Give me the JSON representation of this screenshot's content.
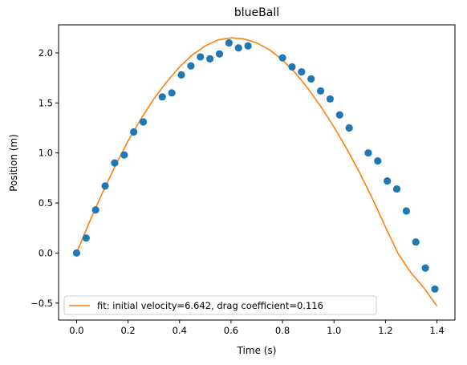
{
  "chart_data": {
    "type": "scatter",
    "title": "blueBall",
    "xlabel": "Time (s)",
    "ylabel": "Position (m)",
    "xlim": [
      -0.07,
      1.47
    ],
    "ylim": [
      -0.67,
      2.28
    ],
    "xticks": [
      0.0,
      0.2,
      0.4,
      0.6,
      0.8,
      1.0,
      1.2,
      1.4
    ],
    "xtick_labels": [
      "0.0",
      "0.2",
      "0.4",
      "0.6",
      "0.8",
      "1.0",
      "1.2",
      "1.4"
    ],
    "yticks": [
      -0.5,
      0.0,
      0.5,
      1.0,
      1.5,
      2.0
    ],
    "ytick_labels": [
      "−0.5",
      "0.0",
      "0.5",
      "1.0",
      "1.5",
      "2.0"
    ],
    "grid": false,
    "legend_position": "lower-left",
    "series": [
      {
        "kind": "scatter",
        "color": "#1f77b4",
        "x": [
          0.0,
          0.037,
          0.074,
          0.111,
          0.148,
          0.185,
          0.222,
          0.259,
          0.333,
          0.37,
          0.407,
          0.444,
          0.481,
          0.518,
          0.555,
          0.592,
          0.629,
          0.666,
          0.8,
          0.837,
          0.874,
          0.911,
          0.948,
          0.985,
          1.022,
          1.059,
          1.133,
          1.17,
          1.207,
          1.244,
          1.281,
          1.318,
          1.355,
          1.392
        ],
        "y": [
          0.0,
          0.15,
          0.43,
          0.67,
          0.9,
          0.98,
          1.21,
          1.31,
          1.56,
          1.6,
          1.78,
          1.87,
          1.96,
          1.94,
          1.99,
          2.1,
          2.05,
          2.07,
          1.95,
          1.86,
          1.81,
          1.74,
          1.62,
          1.54,
          1.38,
          1.25,
          1.0,
          0.92,
          0.72,
          0.64,
          0.42,
          0.11,
          -0.15,
          -0.36
        ]
      },
      {
        "kind": "line",
        "name": "fit: initial velocity=6.642, drag coefficient=0.116",
        "color": "#ff7f0e",
        "x": [
          0.0,
          0.05,
          0.1,
          0.15,
          0.2,
          0.25,
          0.3,
          0.35,
          0.4,
          0.45,
          0.5,
          0.55,
          0.6,
          0.65,
          0.7,
          0.75,
          0.8,
          0.85,
          0.9,
          0.95,
          1.0,
          1.05,
          1.1,
          1.15,
          1.2,
          1.25,
          1.3,
          1.35,
          1.4
        ],
        "y": [
          0.0,
          0.31,
          0.6,
          0.87,
          1.12,
          1.34,
          1.54,
          1.71,
          1.86,
          1.98,
          2.07,
          2.13,
          2.15,
          2.14,
          2.1,
          2.03,
          1.93,
          1.8,
          1.64,
          1.46,
          1.26,
          1.04,
          0.8,
          0.54,
          0.26,
          -0.01,
          -0.2,
          -0.35,
          -0.53
        ]
      }
    ]
  }
}
